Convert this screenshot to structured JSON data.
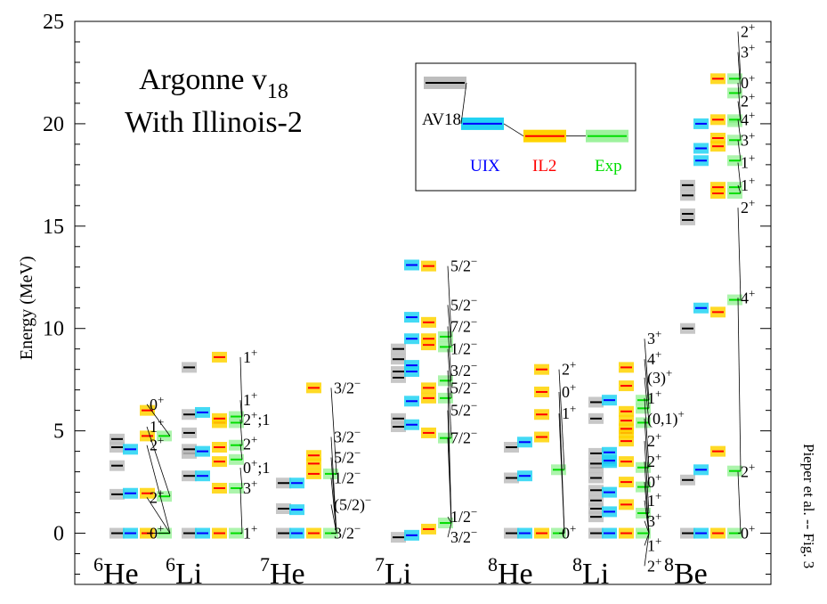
{
  "chart_data": {
    "type": "level-diagram",
    "title_lines": [
      "Argonne v",
      "18",
      "With Illinois-2"
    ],
    "ylabel": "Energy (MeV)",
    "ylim": [
      -2.5,
      25
    ],
    "yticks": [
      0,
      5,
      10,
      15,
      20,
      25
    ],
    "grid": false,
    "legend": {
      "placement": "top-center",
      "entries": [
        {
          "name": "AV18",
          "color": "#000000",
          "band": "#bdbdbd"
        },
        {
          "name": "UIX",
          "color": "#0000ff",
          "band": "#22d3f3"
        },
        {
          "name": "IL2",
          "color": "#ff0000",
          "band": "#ffd400"
        },
        {
          "name": "Exp",
          "color": "#00dd00",
          "band": "#9ef29e"
        }
      ],
      "example_energies": [
        22,
        20,
        19.4,
        19.4
      ]
    },
    "nuclei": [
      {
        "sup": "6",
        "name": "He",
        "AV18": [
          0,
          1.9,
          3.3,
          4.2,
          4.6
        ],
        "UIX": [
          0,
          1.95,
          4.1
        ],
        "IL2": [
          0,
          1.95,
          4.75,
          6.0
        ],
        "Exp": [
          0,
          1.8,
          4.75
        ],
        "labels": [
          {
            "text": "0+",
            "E": 6.3
          },
          {
            "text": "1+",
            "E": 5.2
          },
          {
            "text": "2+",
            "E": 4.3
          },
          {
            "text": "2+",
            "E": 1.75
          },
          {
            "text": "0+",
            "E": 0
          }
        ]
      },
      {
        "sup": "6",
        "name": "Li",
        "AV18": [
          0,
          2.8,
          3.9,
          4.1,
          4.9,
          5.8,
          8.1
        ],
        "UIX": [
          0,
          2.8,
          4.0,
          5.9
        ],
        "IL2": [
          0,
          2.2,
          3.5,
          4.2,
          5.4,
          5.6,
          8.6
        ],
        "Exp": [
          0,
          2.2,
          3.6,
          4.3,
          5.4,
          5.7
        ],
        "labels": [
          {
            "text": "1+",
            "E": 8.6
          },
          {
            "text": "1+",
            "E": 6.5
          },
          {
            "text": "2+;1",
            "E": 5.55
          },
          {
            "text": "2+",
            "E": 4.35
          },
          {
            "text": "0+;1",
            "E": 3.2
          },
          {
            "text": "3+",
            "E": 2.2
          },
          {
            "text": "1+",
            "E": 0
          }
        ]
      },
      {
        "sup": "7",
        "name": "He",
        "AV18": [
          0,
          1.2,
          2.45
        ],
        "UIX": [
          0,
          1.15,
          2.45
        ],
        "IL2": [
          0,
          2.9,
          3.4,
          3.8,
          7.1
        ],
        "Exp": [
          0,
          2.9
        ],
        "labels": [
          {
            "text": "3/2−",
            "E": 7.1
          },
          {
            "text": "3/2−",
            "E": 4.7
          },
          {
            "text": "5/2−",
            "E": 3.7
          },
          {
            "text": "1/2−",
            "E": 2.7
          },
          {
            "text": "(5/2)−",
            "E": 1.4
          },
          {
            "text": "3/2−",
            "E": 0
          }
        ]
      },
      {
        "sup": "7",
        "name": "Li",
        "AV18": [
          -0.2,
          5.2,
          5.6,
          7.6,
          7.9,
          8.5,
          9.0
        ],
        "UIX": [
          -0.1,
          5.3,
          6.45,
          7.9,
          8.2,
          9.5,
          10.55,
          13.1
        ],
        "IL2": [
          0.2,
          4.9,
          6.6,
          7.1,
          9.2,
          9.5,
          10.3,
          13.05
        ],
        "Exp": [
          0.5,
          4.65,
          6.6,
          7.45,
          9.1,
          9.6
        ],
        "labels": [
          {
            "text": "5/2−",
            "E": 13.05
          },
          {
            "text": "5/2−",
            "E": 11.15
          },
          {
            "text": "7/2−",
            "E": 10.1
          },
          {
            "text": "1/2−",
            "E": 9.0
          },
          {
            "text": "3/2−",
            "E": 7.95
          },
          {
            "text": "5/2−",
            "E": 7.1
          },
          {
            "text": "5/2−",
            "E": 6.0
          },
          {
            "text": "7/2−",
            "E": 4.65
          },
          {
            "text": "1/2−",
            "E": 0.8
          },
          {
            "text": "3/2−",
            "E": -0.2
          }
        ]
      },
      {
        "sup": "8",
        "name": "He",
        "AV18": [
          0,
          2.7,
          4.2
        ],
        "UIX": [
          0,
          2.8,
          4.45
        ],
        "IL2": [
          0,
          4.7,
          5.8,
          6.9,
          8.0
        ],
        "Exp": [
          0,
          3.1
        ],
        "labels": [
          {
            "text": "2+",
            "E": 8.0
          },
          {
            "text": "0+",
            "E": 6.9
          },
          {
            "text": "1+",
            "E": 5.85
          },
          {
            "text": "0+",
            "E": 0
          }
        ]
      },
      {
        "sup": "8",
        "name": "Li",
        "AV18": [
          0,
          0.8,
          1.2,
          1.6,
          2.1,
          2.7,
          3.2,
          3.4,
          3.9,
          5.6,
          6.4
        ],
        "UIX": [
          0,
          1.05,
          2.0,
          3.45,
          3.55,
          3.95,
          6.5
        ],
        "IL2": [
          0,
          1.4,
          2.5,
          3.5,
          4.5,
          4.9,
          5.1,
          5.5,
          5.95,
          7.2,
          8.1
        ],
        "Exp": [
          0,
          0.98,
          2.26,
          3.21,
          5.4,
          6.1,
          6.5
        ],
        "labels": [
          {
            "text": "3+",
            "E": 9.5
          },
          {
            "text": "4+",
            "E": 8.5
          },
          {
            "text": "(3)+",
            "E": 7.6
          },
          {
            "text": "1+",
            "E": 6.6
          },
          {
            "text": "(0,1)+",
            "E": 5.6
          },
          {
            "text": "2+",
            "E": 4.5
          },
          {
            "text": "2+",
            "E": 3.5
          },
          {
            "text": "0+",
            "E": 2.5
          },
          {
            "text": "1+",
            "E": 1.6
          },
          {
            "text": "3+",
            "E": 0.6
          },
          {
            "text": "1+",
            "E": -0.6
          },
          {
            "text": "2+",
            "E": -1.6
          }
        ]
      },
      {
        "sup": "8",
        "name": "Be",
        "AV18": [
          0,
          2.6,
          10.0,
          15.3,
          15.6,
          16.5,
          17.0
        ],
        "UIX": [
          0,
          3.1,
          11.0,
          18.2,
          18.8,
          20.0
        ],
        "IL2": [
          0,
          4.0,
          10.8,
          16.6,
          16.9,
          18.9,
          19.3,
          20.2,
          22.2
        ],
        "Exp": [
          0,
          3.04,
          11.4,
          16.6,
          16.9,
          18.2,
          19.2,
          20.1,
          20.2,
          21.5,
          22.2
        ],
        "labels": [
          {
            "text": "2+",
            "E": 24.5
          },
          {
            "text": "3+",
            "E": 23.5
          },
          {
            "text": "0+",
            "E": 22.0
          },
          {
            "text": "2+",
            "E": 21.1
          },
          {
            "text": "4+",
            "E": 20.2
          },
          {
            "text": "3+",
            "E": 19.2
          },
          {
            "text": "1+",
            "E": 18.1
          },
          {
            "text": "1+",
            "E": 17.0
          },
          {
            "text": "2+",
            "E": 15.9
          },
          {
            "text": "4+",
            "E": 11.5
          },
          {
            "text": "2+",
            "E": 3.0
          },
          {
            "text": "0+",
            "E": 0
          }
        ]
      }
    ]
  },
  "side_note": "Pieper et al. -- Fig. 3"
}
